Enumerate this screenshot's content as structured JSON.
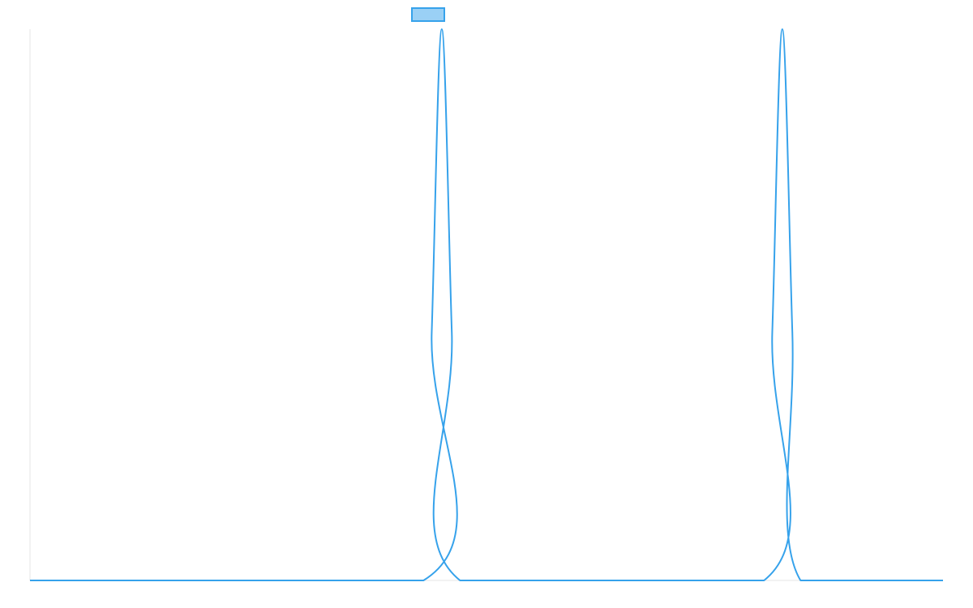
{
  "chart_data": {
    "type": "line",
    "title": "",
    "xlabel": "",
    "ylabel": "",
    "legend": {
      "placement": "top-center",
      "entries": [
        {
          "label": "",
          "color": "#36a2eb",
          "fill": "#9ad0f5"
        }
      ]
    },
    "grid": false,
    "xlim": [
      0,
      1000
    ],
    "ylim": [
      0,
      1
    ],
    "series": [
      {
        "color": "#36a2eb",
        "points": [
          [
            0,
            0
          ],
          [
            431,
            0
          ],
          [
            440,
            0.45
          ],
          [
            451,
            1
          ],
          [
            462,
            0.45
          ],
          [
            471,
            0
          ],
          [
            804,
            0
          ],
          [
            813,
            0.45
          ],
          [
            824,
            1
          ],
          [
            835,
            0.45
          ],
          [
            844,
            0
          ],
          [
            1000,
            0
          ]
        ]
      }
    ]
  }
}
